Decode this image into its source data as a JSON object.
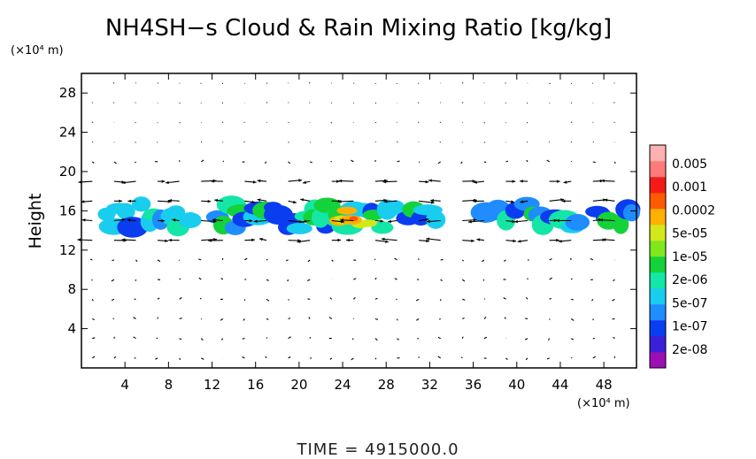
{
  "chart_data": {
    "type": "heatmap",
    "title": "NH4SH−s Cloud & Rain Mixing Ratio [kg/kg]",
    "ylabel": "Height",
    "xlabel": "",
    "x_unit": "(×10⁴ m)",
    "y_unit": "(×10⁴ m)",
    "xlim": [
      0,
      51
    ],
    "ylim": [
      0,
      30
    ],
    "x_ticks": [
      "4",
      "8",
      "12",
      "16",
      "20",
      "24",
      "28",
      "32",
      "36",
      "40",
      "44",
      "48"
    ],
    "y_ticks": [
      "4",
      "8",
      "12",
      "16",
      "20",
      "24",
      "28"
    ],
    "colorbar": {
      "labels": [
        "0.005",
        "0.001",
        "0.0002",
        "5e-05",
        "1e-05",
        "2e-06",
        "5e-07",
        "1e-07",
        "2e-08"
      ],
      "colors": [
        "#9b0fb5",
        "#3b1fd6",
        "#0a3cf0",
        "#1f8cff",
        "#19cdef",
        "#13e6a6",
        "#14d23a",
        "#7ee81c",
        "#d2e81a",
        "#ffb000",
        "#ff5a00",
        "#f51a1a",
        "#ff7a7a",
        "#ffb0b0"
      ]
    },
    "cloud_layer": {
      "base_height": 14,
      "top_height": 17,
      "peak_x": 25,
      "peak_value": "0.0002"
    },
    "vector_field": true,
    "grid": false
  },
  "footer": {
    "time_label": "TIME = 4915000.0"
  }
}
